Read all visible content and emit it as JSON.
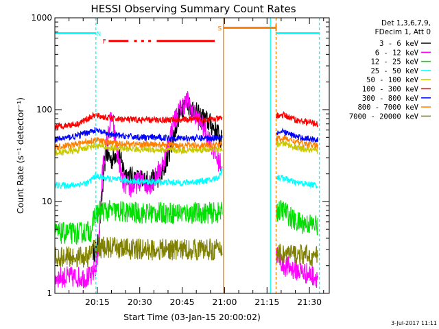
{
  "chart_data": {
    "type": "line",
    "title": "HESSI Observing Summary Count Rates",
    "xlabel": "Start Time (03-Jan-15 20:00:02)",
    "ylabel": "Count Rate (s⁻¹ detector⁻¹)",
    "yscale": "log",
    "ylim": [
      1,
      1000
    ],
    "xlim_minutes": [
      0,
      97
    ],
    "x_ticks": [
      {
        "label": "20:15",
        "minutes": 15
      },
      {
        "label": "20:30",
        "minutes": 30
      },
      {
        "label": "20:45",
        "minutes": 45
      },
      {
        "label": "21:00",
        "minutes": 60
      },
      {
        "label": "21:15",
        "minutes": 75
      },
      {
        "label": "21:30",
        "minutes": 90
      }
    ],
    "y_ticks": [
      {
        "label": "1",
        "value": 1
      },
      {
        "label": "10",
        "value": 10
      },
      {
        "label": "100",
        "value": 100
      },
      {
        "label": "1000",
        "value": 1000
      }
    ],
    "legend_header": [
      "Det 1,3,6,7,9,",
      "FDecim 1, Att 0"
    ],
    "data_gap_minutes": [
      59.2,
      78.2
    ],
    "series": [
      {
        "name": "3 - 6 keV",
        "color": "#000000",
        "points": [
          [
            13.5,
            2.9
          ],
          [
            15,
            2.9
          ],
          [
            18,
            35
          ],
          [
            20,
            28
          ],
          [
            22,
            35
          ],
          [
            25,
            20
          ],
          [
            28,
            18
          ],
          [
            31,
            17
          ],
          [
            35,
            17
          ],
          [
            38,
            20
          ],
          [
            41,
            40
          ],
          [
            44,
            90
          ],
          [
            46,
            120
          ],
          [
            48,
            110
          ],
          [
            51,
            85
          ],
          [
            54,
            75
          ],
          [
            57,
            60
          ],
          [
            59,
            45
          ]
        ]
      },
      {
        "name": "6 - 12 keV",
        "color": "#ff00ff",
        "points": [
          [
            0,
            1.5
          ],
          [
            6,
            1.5
          ],
          [
            13,
            1.5
          ],
          [
            15,
            2.2
          ],
          [
            17,
            25
          ],
          [
            20,
            85
          ],
          [
            22,
            35
          ],
          [
            24,
            16
          ],
          [
            27,
            14
          ],
          [
            30,
            17
          ],
          [
            33,
            15
          ],
          [
            35,
            17
          ],
          [
            38,
            25
          ],
          [
            40,
            40
          ],
          [
            42,
            75
          ],
          [
            45,
            110
          ],
          [
            47,
            125
          ],
          [
            49,
            90
          ],
          [
            52,
            70
          ],
          [
            55,
            45
          ],
          [
            57,
            30
          ],
          [
            59,
            25
          ],
          [
            81,
            2
          ],
          [
            93,
            1.5
          ]
        ]
      },
      {
        "name": "12 - 25 keV",
        "color": "#00e000",
        "points": [
          [
            0,
            4.5
          ],
          [
            8,
            4.5
          ],
          [
            13,
            4.8
          ],
          [
            14,
            7
          ],
          [
            16,
            8
          ],
          [
            30,
            7.5
          ],
          [
            50,
            7.5
          ],
          [
            59,
            7.5
          ],
          [
            81,
            8
          ],
          [
            85,
            6
          ],
          [
            93,
            5.5
          ]
        ]
      },
      {
        "name": "25 - 50 keV",
        "color": "#00ffff",
        "points": [
          [
            0,
            15
          ],
          [
            6,
            15
          ],
          [
            12,
            16
          ],
          [
            14,
            19
          ],
          [
            20,
            17.5
          ],
          [
            30,
            16.5
          ],
          [
            45,
            16
          ],
          [
            55,
            17
          ],
          [
            58,
            18.5
          ],
          [
            59,
            22
          ],
          [
            81,
            18
          ],
          [
            85,
            16
          ],
          [
            93,
            15
          ]
        ]
      },
      {
        "name": "50 - 100 keV",
        "color": "#c8c800",
        "points": [
          [
            0,
            34
          ],
          [
            8,
            36
          ],
          [
            14,
            41
          ],
          [
            20,
            38
          ],
          [
            30,
            37
          ],
          [
            45,
            36
          ],
          [
            55,
            37
          ],
          [
            59,
            37
          ],
          [
            81,
            43
          ],
          [
            86,
            38
          ],
          [
            93,
            35
          ]
        ]
      },
      {
        "name": "100 - 300 keV",
        "color": "#ff0000",
        "points": [
          [
            0,
            65
          ],
          [
            8,
            70
          ],
          [
            14,
            87
          ],
          [
            20,
            80
          ],
          [
            30,
            77
          ],
          [
            45,
            78
          ],
          [
            55,
            78
          ],
          [
            59,
            80
          ],
          [
            81,
            87
          ],
          [
            86,
            76
          ],
          [
            93,
            70
          ]
        ]
      },
      {
        "name": "300 - 800 keV",
        "color": "#0000ff",
        "points": [
          [
            0,
            47
          ],
          [
            8,
            52
          ],
          [
            14,
            60
          ],
          [
            20,
            53
          ],
          [
            30,
            50
          ],
          [
            45,
            49
          ],
          [
            55,
            49
          ],
          [
            59,
            51
          ],
          [
            81,
            57
          ],
          [
            86,
            50
          ],
          [
            93,
            47
          ]
        ]
      },
      {
        "name": "800 - 7000 keV",
        "color": "#ff8000",
        "points": [
          [
            0,
            39
          ],
          [
            8,
            42
          ],
          [
            14,
            47
          ],
          [
            20,
            43
          ],
          [
            30,
            42
          ],
          [
            45,
            41
          ],
          [
            55,
            41
          ],
          [
            59,
            42
          ],
          [
            81,
            49
          ],
          [
            86,
            44
          ],
          [
            93,
            40
          ]
        ]
      },
      {
        "name": "7000 - 20000 keV",
        "color": "#808000",
        "points": [
          [
            0,
            2.5
          ],
          [
            12,
            2.5
          ],
          [
            14,
            3.2
          ],
          [
            30,
            3
          ],
          [
            45,
            3
          ],
          [
            59,
            3
          ],
          [
            81,
            2.7
          ],
          [
            93,
            2.5
          ]
        ]
      }
    ],
    "flag_bars": [
      {
        "label": "N",
        "color": "#00ffff",
        "label_minutes": 15.5,
        "segments": [
          [
            0,
            14.5
          ],
          [
            78.2,
            93.5
          ]
        ],
        "level": 680
      },
      {
        "label": "F",
        "color": "#ff0000",
        "label_minutes": 17.5,
        "segments": [
          [
            19,
            26
          ],
          [
            28,
            29
          ],
          [
            30.5,
            31.5
          ],
          [
            33,
            34
          ],
          [
            36,
            56.5
          ]
        ],
        "level": 560
      },
      {
        "label": "S",
        "color": "#ff8000",
        "label_minutes": 58.3,
        "segments": [
          [
            59.6,
            78.2
          ]
        ],
        "level": 780
      }
    ],
    "vertical_lines": [
      {
        "minutes": 14.5,
        "color": "#00ffff",
        "style": "dashed"
      },
      {
        "minutes": 59.6,
        "color": "#ff8000",
        "style": "solid"
      },
      {
        "minutes": 76.2,
        "color": "#00ffff",
        "style": "solid"
      },
      {
        "minutes": 78.2,
        "color": "#ff8000",
        "style": "dashed"
      },
      {
        "minutes": 93.5,
        "color": "#00ffff",
        "style": "dashed"
      }
    ],
    "footer_date": "3-Jul-2017 11:11"
  }
}
